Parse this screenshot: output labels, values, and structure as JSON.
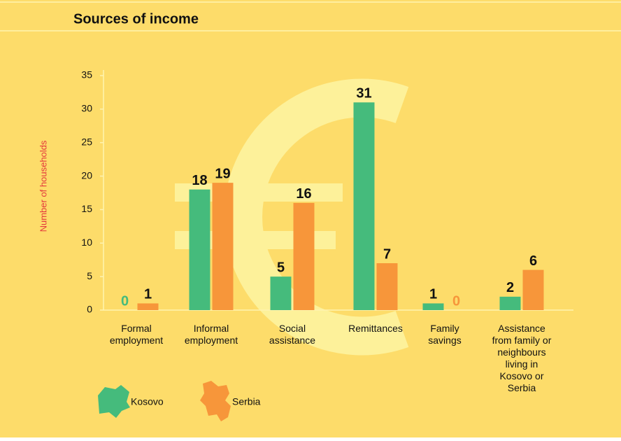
{
  "chart_data": {
    "type": "bar",
    "title": "Sources of income",
    "y_label": "Number of households",
    "categories": [
      [
        "Formal",
        "employment"
      ],
      [
        "Informal",
        "employment"
      ],
      [
        "Social",
        "assistance"
      ],
      [
        "Remittances"
      ],
      [
        "Family",
        "savings"
      ],
      [
        "Assistance",
        "from family or",
        "neighbours",
        "living in",
        "Kosovo or",
        "Serbia"
      ]
    ],
    "series": [
      {
        "name": "Kosovo",
        "color": "#45bb7c",
        "values": [
          0,
          18,
          5,
          31,
          1,
          2
        ]
      },
      {
        "name": "Serbia",
        "color": "#f7963a",
        "values": [
          1,
          19,
          16,
          7,
          0,
          6
        ]
      }
    ],
    "ylim": [
      0,
      35
    ],
    "yticks": [
      0,
      5,
      10,
      15,
      20,
      25,
      30,
      35
    ]
  }
}
